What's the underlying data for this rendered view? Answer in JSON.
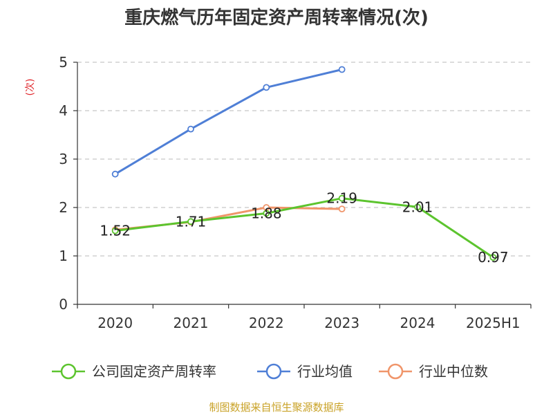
{
  "chart_data": {
    "type": "line",
    "title": "重庆燃气历年固定资产周转率情况(次)",
    "ylabel": "(次)",
    "categories": [
      "2020",
      "2021",
      "2022",
      "2023",
      "2024",
      "2025H1"
    ],
    "ylim": [
      0,
      5
    ],
    "yticks": [
      "0",
      "1",
      "2",
      "3",
      "4",
      "5"
    ],
    "grid": true,
    "legend_position": "bottom",
    "series": [
      {
        "name": "公司固定资产周转率",
        "color": "#5cc42e",
        "values": [
          1.52,
          1.71,
          1.88,
          2.19,
          2.01,
          0.97
        ],
        "labels": [
          "1.52",
          "1.71",
          "1.88",
          "2.19",
          "2.01",
          "0.97"
        ]
      },
      {
        "name": "行业均值",
        "color": "#4f7fd6",
        "values": [
          2.69,
          3.62,
          4.48,
          4.85,
          null,
          null
        ]
      },
      {
        "name": "行业中位数",
        "color": "#f0956a",
        "values": [
          1.54,
          1.7,
          2.0,
          1.97,
          null,
          null
        ]
      }
    ],
    "ylabel_color": "#e0262b"
  },
  "source": {
    "text": "制图数据来自恒生聚源数据库",
    "color": "#c9a227"
  }
}
